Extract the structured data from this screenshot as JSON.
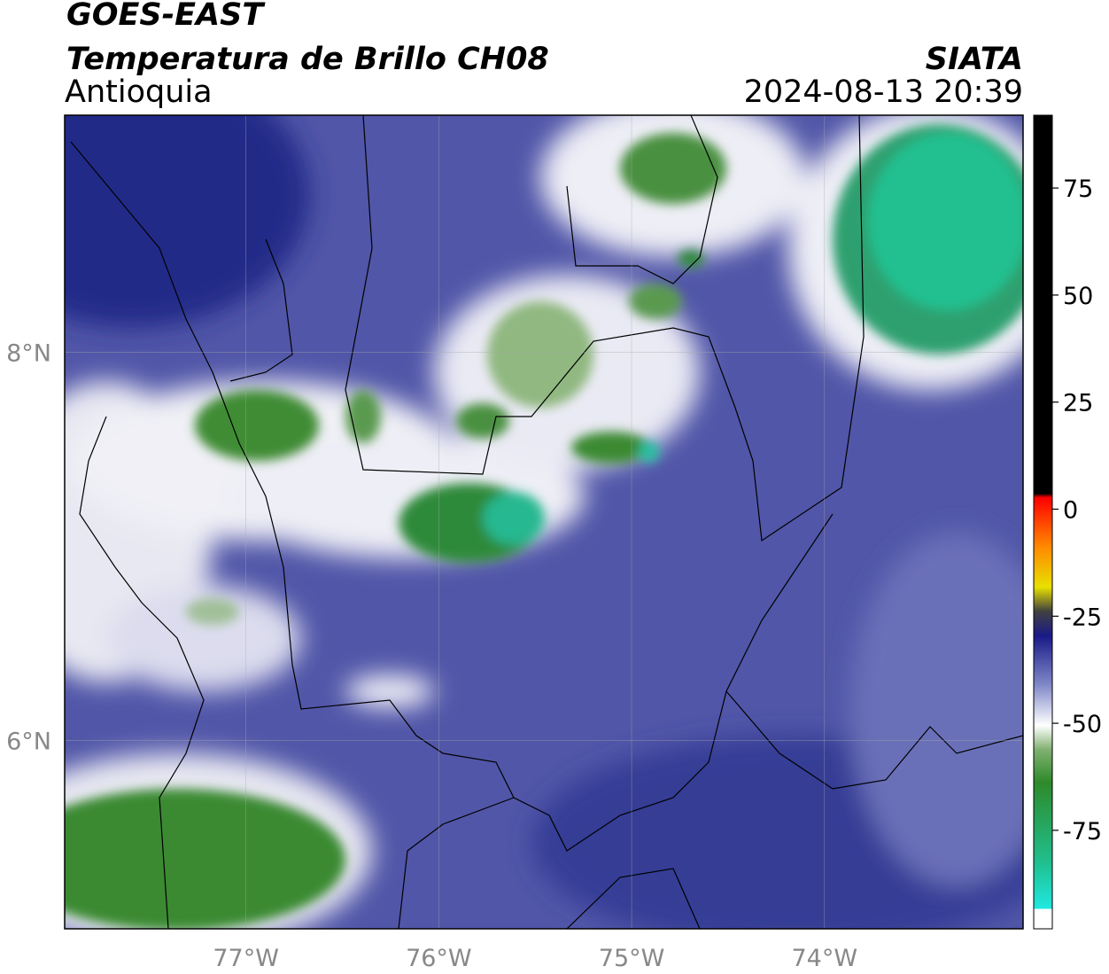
{
  "header": {
    "satellite": "GOES-EAST",
    "product": "Temperatura de Brillo CH08",
    "region": "Antioquia",
    "source": "SIATA",
    "datetime": "2024-08-13 20:39"
  },
  "map": {
    "xlim": [
      -77.94,
      -72.97
    ],
    "ylim": [
      5.03,
      9.22
    ],
    "xticks": [
      {
        "value": -77,
        "label": "77°W"
      },
      {
        "value": -76,
        "label": "76°W"
      },
      {
        "value": -75,
        "label": "75°W"
      },
      {
        "value": -74,
        "label": "74°W"
      }
    ],
    "yticks": [
      {
        "value": 6,
        "label": "6°N"
      },
      {
        "value": 8,
        "label": "8°N"
      }
    ],
    "grid": true
  },
  "colorbar": {
    "lim": [
      -98,
      92
    ],
    "ticks": [
      -75,
      -50,
      -25,
      0,
      25,
      50,
      75
    ]
  }
}
